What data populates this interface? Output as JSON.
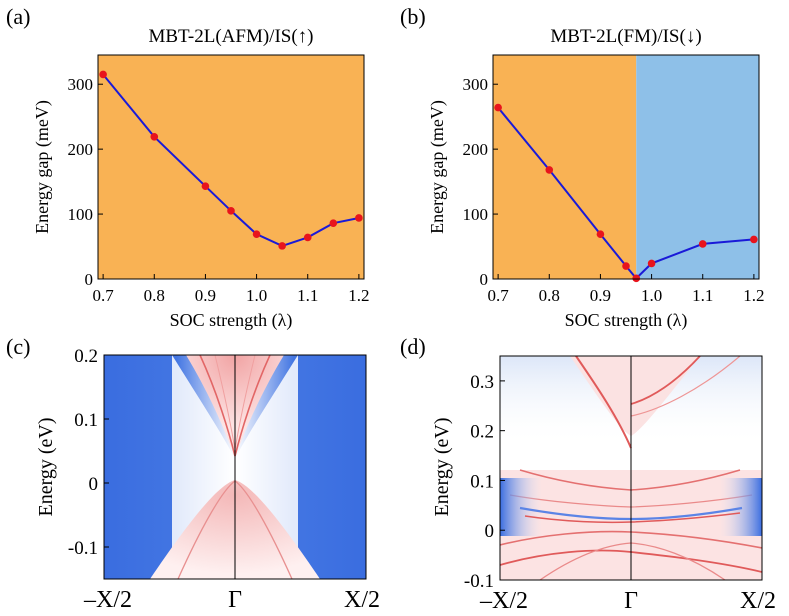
{
  "chart_data": [
    {
      "type": "line",
      "panel": "(a)",
      "title": "MBT-2L(AFM)/IS(↑)",
      "xlabel": "SOC strength (λ)",
      "ylabel": "Energy gap (meV)",
      "xlim": [
        0.69,
        1.21
      ],
      "ylim": [
        0,
        345
      ],
      "xticks": [
        0.7,
        0.8,
        0.9,
        1.0,
        1.1,
        1.2
      ],
      "xtick_labels": [
        "0.7",
        "0.8",
        "0.9",
        "1.0",
        "1.1",
        "1.2"
      ],
      "yticks": [
        0,
        100,
        200,
        300
      ],
      "ytick_labels": [
        "0",
        "100",
        "200",
        "300"
      ],
      "x": [
        0.7,
        0.8,
        0.9,
        0.95,
        1.0,
        1.05,
        1.1,
        1.15,
        1.2
      ],
      "y": [
        315,
        219,
        143,
        105,
        69,
        51,
        64,
        86,
        94
      ],
      "regions": [
        {
          "x_from": 0.69,
          "x_to": 1.21,
          "color": "#f9b254"
        }
      ],
      "line_color": "#1a1ad8",
      "marker_color": "#e8141c"
    },
    {
      "type": "line",
      "panel": "(b)",
      "title": "MBT-2L(FM)/IS(↓)",
      "xlabel": "SOC strength (λ)",
      "ylabel": "Energy gap (meV)",
      "xlim": [
        0.69,
        1.21
      ],
      "ylim": [
        0,
        345
      ],
      "xticks": [
        0.7,
        0.8,
        0.9,
        1.0,
        1.1,
        1.2
      ],
      "xtick_labels": [
        "0.7",
        "0.8",
        "0.9",
        "1.0",
        "1.1",
        "1.2"
      ],
      "yticks": [
        0,
        100,
        200,
        300
      ],
      "ytick_labels": [
        "0",
        "100",
        "200",
        "300"
      ],
      "x": [
        0.7,
        0.8,
        0.9,
        0.95,
        0.97,
        1.0,
        1.1,
        1.2
      ],
      "y": [
        264,
        168,
        69,
        20,
        1,
        24,
        54,
        61
      ],
      "regions": [
        {
          "x_from": 0.69,
          "x_to": 0.97,
          "color": "#f9b254"
        },
        {
          "x_from": 0.97,
          "x_to": 1.21,
          "color": "#8ec0e8"
        }
      ],
      "line_color": "#1a1ad8",
      "marker_color": "#e8141c"
    },
    {
      "type": "heatmap",
      "panel": "(c)",
      "ylabel": "Energy (eV)",
      "ylim": [
        -0.15,
        0.2
      ],
      "yticks": [
        -0.1,
        0,
        0.1,
        0.2
      ],
      "ytick_labels": [
        "-0.1",
        "0",
        "0.1",
        "0.2"
      ],
      "xtick_labels": [
        "–X/2",
        "Γ",
        "X/2"
      ],
      "gap_bottom": 0.01,
      "gap_top": 0.04,
      "colors": {
        "low": "#3a6de0",
        "mid": "#ffffff",
        "high": "#e63c3c"
      }
    },
    {
      "type": "heatmap",
      "panel": "(d)",
      "ylabel": "Energy (eV)",
      "ylim": [
        -0.1,
        0.35
      ],
      "yticks": [
        -0.1,
        0,
        0.1,
        0.2,
        0.3
      ],
      "ytick_labels": [
        "-0.1",
        "0",
        "0.1",
        "0.2",
        "0.3"
      ],
      "xtick_labels": [
        "–X/2",
        "Γ",
        "X/2"
      ],
      "colors": {
        "low": "#3a6de0",
        "mid": "#ffffff",
        "high": "#e63c3c"
      }
    }
  ]
}
